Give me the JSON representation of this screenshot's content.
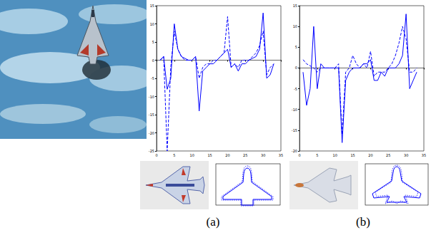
{
  "chart_data": [
    {
      "type": "line",
      "annotations": [
        "(a)"
      ],
      "x": [
        1,
        2,
        3,
        4,
        5,
        6,
        7,
        8,
        9,
        10,
        11,
        12,
        13,
        14,
        15,
        16,
        17,
        18,
        19,
        20,
        21,
        22,
        23,
        24,
        25,
        26,
        27,
        28,
        29,
        30,
        31,
        32,
        33
      ],
      "series": [
        {
          "color": "#0000ff",
          "line_style": "solid",
          "values": [
            0,
            1,
            -8,
            -5,
            10,
            3,
            1,
            0.5,
            0,
            0,
            1,
            -14,
            -3,
            -2,
            -1,
            -1,
            0,
            1,
            2,
            3,
            -2,
            -1,
            -3,
            -1,
            -1,
            0,
            0.5,
            1,
            3,
            13,
            -5,
            -4,
            -1
          ]
        },
        {
          "color": "#0000ff",
          "line_style": "dashed",
          "values": [
            0,
            1,
            -25,
            -2,
            8,
            3,
            1,
            0,
            0,
            0,
            1,
            -5,
            -2,
            -1,
            -1,
            0,
            0,
            1,
            2,
            12,
            -2,
            -1,
            -2,
            0,
            0,
            0,
            1,
            2,
            4,
            8,
            -4,
            -2,
            -1
          ]
        }
      ],
      "xlim": [
        0,
        35
      ],
      "xticks": [
        0,
        5,
        10,
        15,
        20,
        25,
        30,
        35
      ],
      "ylim": [
        -25,
        15
      ],
      "yticks": [
        -25,
        -20,
        -15,
        -10,
        -5,
        0,
        5,
        10,
        15
      ],
      "grid": false
    },
    {
      "type": "line",
      "annotations": [
        "(b)"
      ],
      "x": [
        1,
        2,
        3,
        4,
        5,
        6,
        7,
        8,
        9,
        10,
        11,
        12,
        13,
        14,
        15,
        16,
        17,
        18,
        19,
        20,
        21,
        22,
        23,
        24,
        25,
        26,
        27,
        28,
        29,
        30,
        31,
        32,
        33
      ],
      "series": [
        {
          "color": "#0000ff",
          "line_style": "solid",
          "values": [
            -1,
            -9,
            -5,
            10,
            -5,
            1,
            0,
            0,
            0,
            0,
            0,
            -18,
            -3,
            -1,
            0,
            0,
            0,
            1,
            1,
            2,
            -3,
            -3,
            -1,
            -2,
            0,
            0,
            0,
            1,
            3,
            13,
            -5,
            -3,
            -1
          ]
        },
        {
          "color": "#0000ff",
          "line_style": "dashed",
          "values": [
            2,
            1,
            0.5,
            0,
            -1,
            0,
            0,
            0,
            0,
            0,
            1,
            -16,
            -1,
            0,
            3,
            1,
            0,
            1,
            0,
            4,
            -2,
            -1,
            -1,
            -1,
            0,
            1,
            3,
            6,
            10,
            7,
            -1,
            -1,
            0
          ]
        }
      ],
      "xlim": [
        0,
        35
      ],
      "xticks": [
        0,
        5,
        10,
        15,
        20,
        25,
        30,
        35
      ],
      "ylim": [
        -20,
        15
      ],
      "yticks": [
        -20,
        -15,
        -10,
        -5,
        0,
        5,
        10,
        15
      ],
      "grid": false
    }
  ]
}
